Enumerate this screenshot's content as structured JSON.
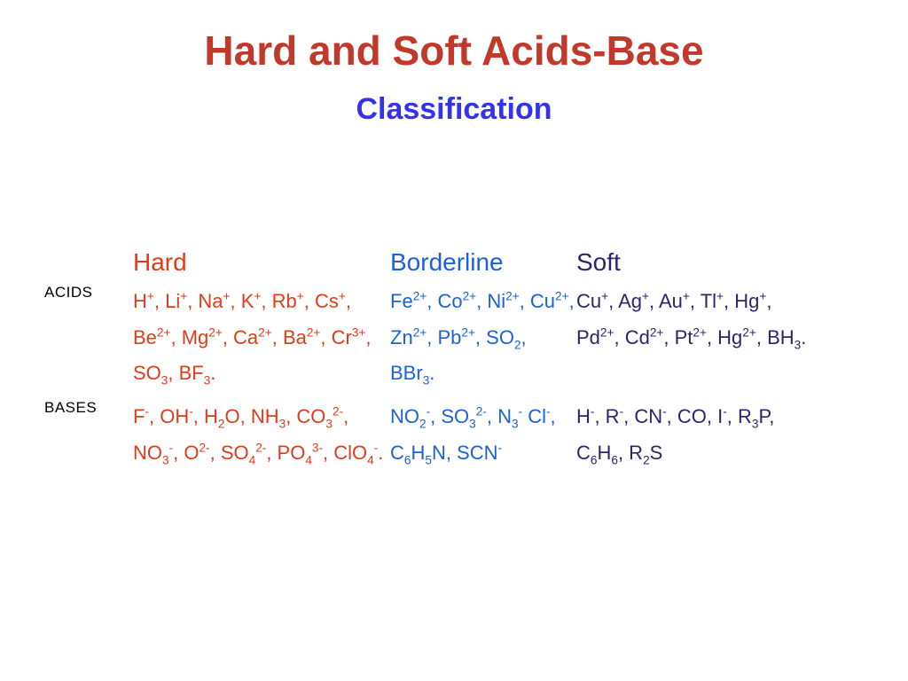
{
  "title": {
    "text": "Hard and Soft Acids-Base",
    "color": "#c0392b",
    "fontsize": 46
  },
  "subtitle": {
    "text": "Classification",
    "color": "#3333ee",
    "fontsize": 34
  },
  "layout": {
    "rowlabel_fontsize": 17,
    "rowlabel_color": "#000000",
    "colhead_fontsize": 28,
    "cell_fontsize": 22
  },
  "columns": [
    {
      "key": "hard",
      "label": "Hard",
      "color": "#e23b1a"
    },
    {
      "key": "borderline",
      "label": "Borderline",
      "color": "#1a62d6"
    },
    {
      "key": "soft",
      "label": "Soft",
      "color": "#2b2570"
    }
  ],
  "rows": [
    {
      "key": "acids",
      "label": "ACIDS"
    },
    {
      "key": "bases",
      "label": "BASES"
    }
  ],
  "data": {
    "acids": {
      "hard": "H^{+}, Li^{+}, Na^{+}, K^{+}, Rb^{+}, Cs^{+}, Be^{2+}, Mg^{2+}, Ca^{2+},  Ba^{2+}, Cr^{3+}, SO_{3}, BF_{3}.",
      "borderline": "Fe^{2+}, Co^{2+}, Ni^{2+}, Cu^{2+}, Zn^{2+}, Pb^{2+}, SO_{2}, BBr_{3}.",
      "soft": "Cu^{+}, Ag^{+}, Au^{+}, Tl^{+}, Hg^{+}, Pd^{2+}, Cd^{2+}, Pt^{2+}, Hg^{2+}, BH_{3}."
    },
    "bases": {
      "hard": "F^{-}, OH^{-}, H_{2}O, NH_{3}, CO_{3}^{2-}, NO_{3}^{-}, O^{2-}, SO_{4}^{2-}, PO_{4}^{3-}, ClO_{4}^{-}.",
      "borderline": "NO_{2}^{-}, SO_{3}^{2-}, N_{3}^{-} Cl^{-}, C_{6}H_{5}N, SCN^{-}",
      "soft": "H^{-}, R^{-}, CN^{-}, CO, I^{-}, R_{3}P, C_{6}H_{6}, R_{2}S"
    }
  }
}
